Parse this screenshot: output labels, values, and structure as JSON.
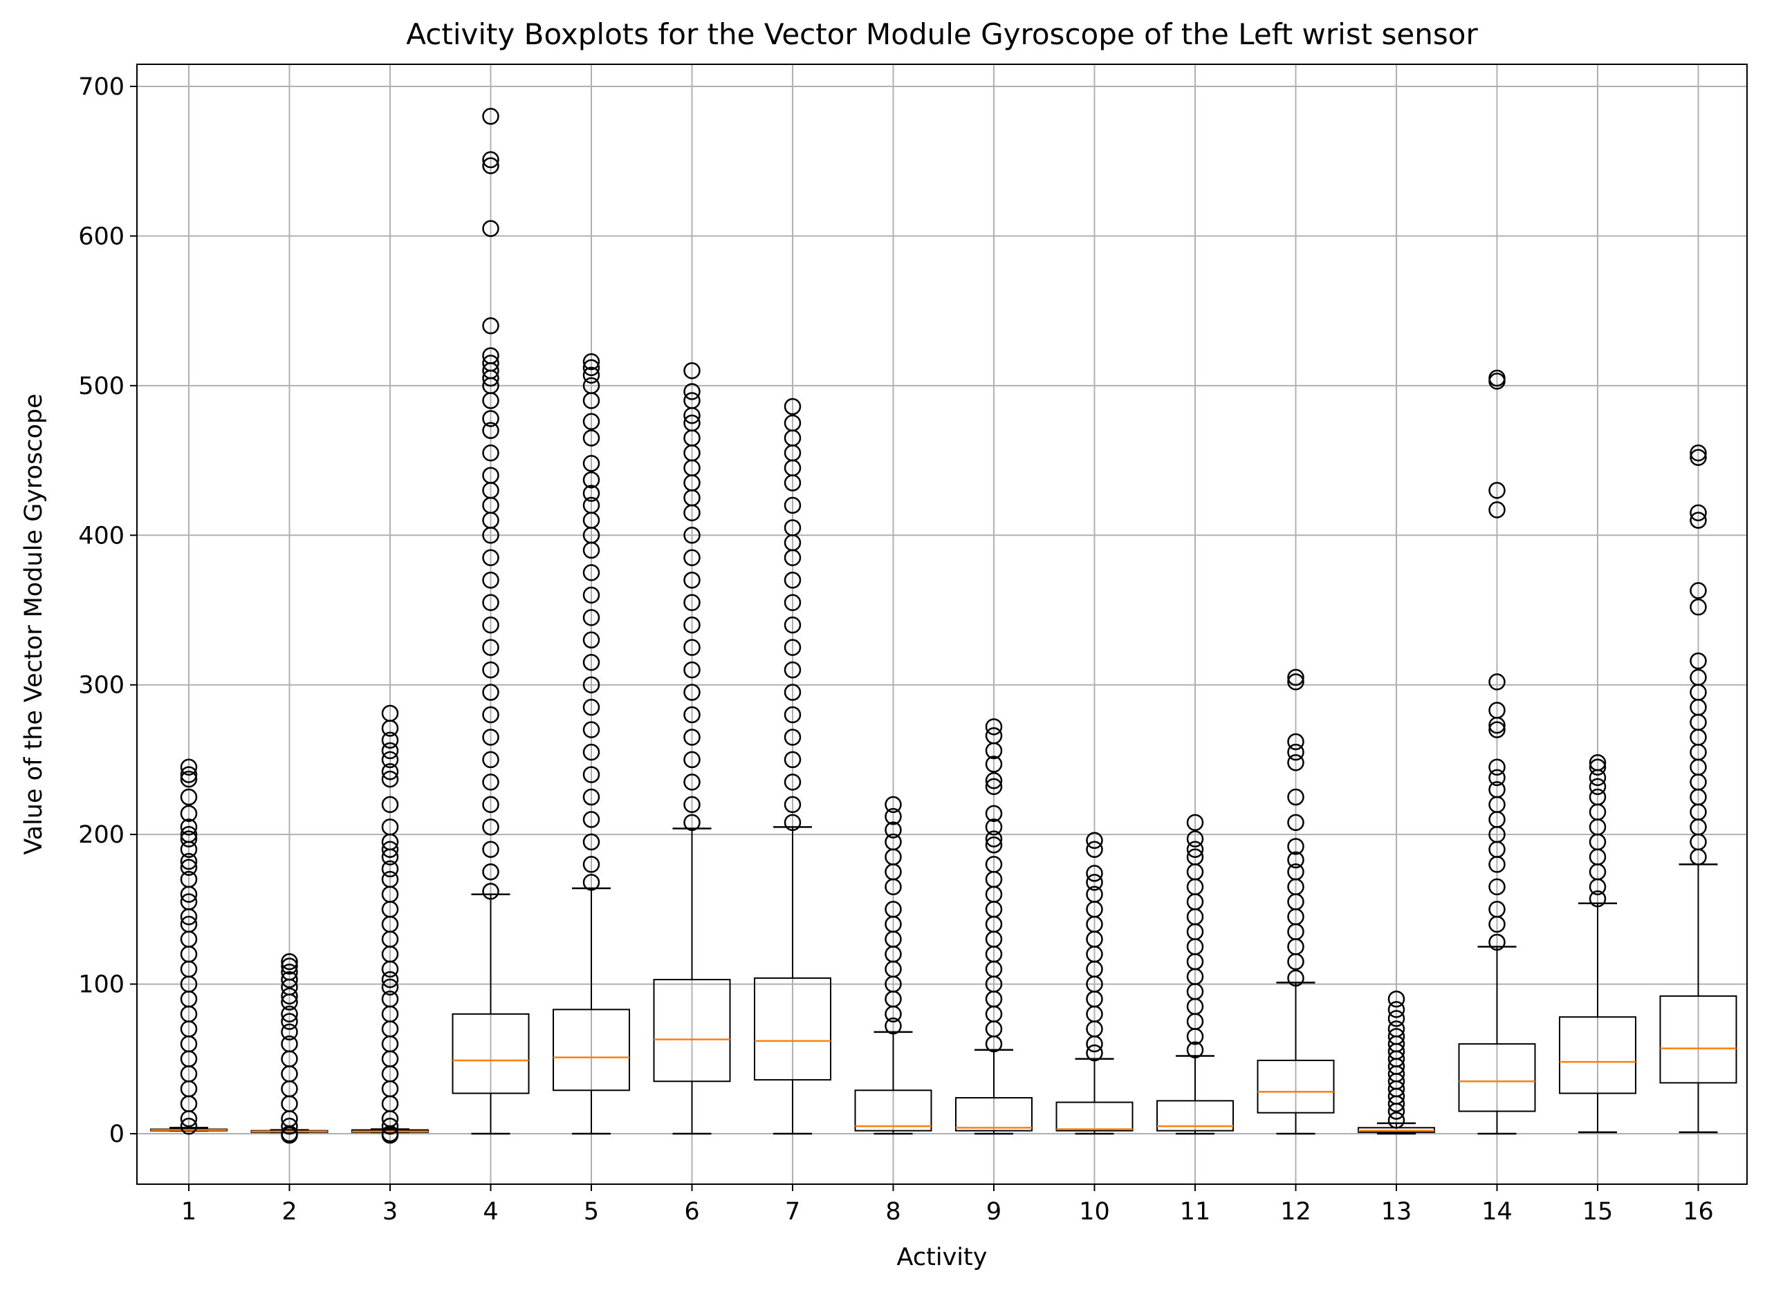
{
  "chart_data": {
    "type": "box",
    "title": "Activity Boxplots for the Vector Module Gyroscope of the Left wrist sensor",
    "xlabel": "Activity",
    "ylabel": "Value of the Vector Module Gyroscope",
    "categories": [
      "1",
      "2",
      "3",
      "4",
      "5",
      "6",
      "7",
      "8",
      "9",
      "10",
      "11",
      "12",
      "13",
      "14",
      "15",
      "16"
    ],
    "ylim": [
      -33,
      715
    ],
    "yticks": [
      0,
      100,
      200,
      300,
      400,
      500,
      600,
      700
    ],
    "grid": true,
    "colors": {
      "box": "#000000",
      "median": "#ff7f0e",
      "grid": "#b0b0b0"
    },
    "boxes": [
      {
        "whislo": 2,
        "q1": 2,
        "med": 2.5,
        "q3": 3,
        "whishi": 4,
        "outliers": [
          5,
          10,
          20,
          30,
          40,
          50,
          60,
          70,
          80,
          90,
          100,
          110,
          120,
          130,
          140,
          145,
          155,
          160,
          170,
          178,
          182,
          190,
          197,
          200,
          205,
          214,
          225,
          237,
          240,
          245
        ]
      },
      {
        "whislo": 1,
        "q1": 1,
        "med": 1.5,
        "q3": 2,
        "whishi": 2.5,
        "outliers": [
          -1,
          0,
          5,
          10,
          20,
          30,
          40,
          50,
          60,
          68,
          75,
          80,
          88,
          92,
          98,
          103,
          108,
          112,
          115
        ]
      },
      {
        "whislo": 1,
        "q1": 1,
        "med": 1.5,
        "q3": 2.5,
        "whishi": 3,
        "outliers": [
          -1,
          0,
          5,
          10,
          20,
          30,
          40,
          50,
          60,
          70,
          80,
          90,
          98,
          103,
          110,
          120,
          130,
          140,
          150,
          160,
          170,
          177,
          185,
          190,
          195,
          205,
          220,
          237,
          242,
          250,
          256,
          263,
          271,
          281
        ]
      },
      {
        "whislo": 0,
        "q1": 27,
        "med": 49,
        "q3": 80,
        "whishi": 160,
        "outliers": [
          162,
          175,
          190,
          205,
          220,
          235,
          250,
          265,
          280,
          295,
          310,
          325,
          340,
          355,
          370,
          385,
          400,
          410,
          420,
          430,
          440,
          455,
          470,
          478,
          490,
          500,
          505,
          510,
          515,
          520,
          540,
          605,
          647,
          651,
          680
        ]
      },
      {
        "whislo": 0,
        "q1": 29,
        "med": 51,
        "q3": 83,
        "whishi": 164,
        "outliers": [
          168,
          180,
          195,
          210,
          225,
          240,
          255,
          270,
          285,
          300,
          315,
          330,
          345,
          360,
          375,
          390,
          400,
          410,
          420,
          428,
          437,
          448,
          465,
          476,
          490,
          500,
          507,
          512,
          516
        ]
      },
      {
        "whislo": 0,
        "q1": 35,
        "med": 63,
        "q3": 103,
        "whishi": 204,
        "outliers": [
          208,
          220,
          235,
          250,
          265,
          280,
          295,
          310,
          325,
          340,
          355,
          370,
          385,
          400,
          415,
          425,
          435,
          445,
          455,
          465,
          475,
          480,
          490,
          496,
          510
        ]
      },
      {
        "whislo": 0,
        "q1": 36,
        "med": 62,
        "q3": 104,
        "whishi": 205,
        "outliers": [
          208,
          220,
          235,
          250,
          265,
          280,
          295,
          310,
          325,
          340,
          355,
          370,
          385,
          395,
          405,
          420,
          435,
          445,
          455,
          465,
          475,
          486
        ]
      },
      {
        "whislo": 0,
        "q1": 2,
        "med": 5,
        "q3": 29,
        "whishi": 68,
        "outliers": [
          72,
          80,
          90,
          100,
          110,
          120,
          130,
          140,
          150,
          165,
          175,
          185,
          195,
          203,
          212,
          220
        ]
      },
      {
        "whislo": 0,
        "q1": 2,
        "med": 4,
        "q3": 24,
        "whishi": 56,
        "outliers": [
          60,
          70,
          80,
          90,
          100,
          110,
          120,
          130,
          140,
          150,
          160,
          170,
          180,
          193,
          197,
          205,
          214,
          232,
          236,
          247,
          256,
          266,
          272
        ]
      },
      {
        "whislo": 0,
        "q1": 2,
        "med": 3,
        "q3": 21,
        "whishi": 50,
        "outliers": [
          54,
          60,
          70,
          80,
          90,
          100,
          110,
          120,
          130,
          140,
          150,
          160,
          168,
          174,
          190,
          196
        ]
      },
      {
        "whislo": 0,
        "q1": 2,
        "med": 5,
        "q3": 22,
        "whishi": 52,
        "outliers": [
          56,
          65,
          75,
          85,
          95,
          105,
          115,
          125,
          135,
          145,
          155,
          165,
          175,
          185,
          190,
          197,
          208
        ]
      },
      {
        "whislo": 0,
        "q1": 14,
        "med": 28,
        "q3": 49,
        "whishi": 101,
        "outliers": [
          104,
          115,
          125,
          135,
          145,
          155,
          165,
          175,
          183,
          192,
          208,
          225,
          248,
          255,
          262,
          302,
          305
        ]
      },
      {
        "whislo": 0,
        "q1": 1,
        "med": 2,
        "q3": 4,
        "whishi": 7,
        "outliers": [
          9,
          15,
          20,
          25,
          30,
          35,
          40,
          45,
          50,
          55,
          60,
          65,
          70,
          77,
          83,
          90
        ]
      },
      {
        "whislo": 0,
        "q1": 15,
        "med": 35,
        "q3": 60,
        "whishi": 125,
        "outliers": [
          128,
          140,
          150,
          165,
          180,
          190,
          200,
          210,
          220,
          230,
          238,
          245,
          270,
          273,
          283,
          302,
          417,
          430,
          503,
          505
        ]
      },
      {
        "whislo": 1,
        "q1": 27,
        "med": 48,
        "q3": 78,
        "whishi": 154,
        "outliers": [
          157,
          165,
          175,
          185,
          195,
          205,
          215,
          225,
          232,
          238,
          245,
          248
        ]
      },
      {
        "whislo": 1,
        "q1": 34,
        "med": 57,
        "q3": 92,
        "whishi": 180,
        "outliers": [
          185,
          195,
          205,
          215,
          225,
          235,
          245,
          255,
          265,
          275,
          285,
          295,
          305,
          316,
          352,
          363,
          410,
          415,
          452,
          455
        ]
      }
    ]
  }
}
